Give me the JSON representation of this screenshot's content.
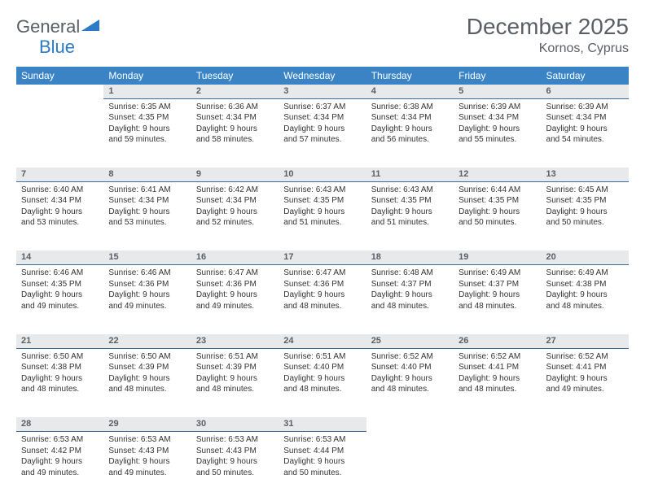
{
  "logo": {
    "part1": "General",
    "part2": "Blue"
  },
  "title": "December 2025",
  "location": "Kornos, Cyprus",
  "colors": {
    "header_bg": "#3a84c6",
    "daynum_bg": "#e8e9ea",
    "daynum_border": "#3a6a9a",
    "text": "#333333",
    "muted": "#5a5f66"
  },
  "weekdays": [
    "Sunday",
    "Monday",
    "Tuesday",
    "Wednesday",
    "Thursday",
    "Friday",
    "Saturday"
  ],
  "weeks": [
    {
      "days": [
        null,
        {
          "n": "1",
          "sunrise": "Sunrise: 6:35 AM",
          "sunset": "Sunset: 4:35 PM",
          "day1": "Daylight: 9 hours",
          "day2": "and 59 minutes."
        },
        {
          "n": "2",
          "sunrise": "Sunrise: 6:36 AM",
          "sunset": "Sunset: 4:34 PM",
          "day1": "Daylight: 9 hours",
          "day2": "and 58 minutes."
        },
        {
          "n": "3",
          "sunrise": "Sunrise: 6:37 AM",
          "sunset": "Sunset: 4:34 PM",
          "day1": "Daylight: 9 hours",
          "day2": "and 57 minutes."
        },
        {
          "n": "4",
          "sunrise": "Sunrise: 6:38 AM",
          "sunset": "Sunset: 4:34 PM",
          "day1": "Daylight: 9 hours",
          "day2": "and 56 minutes."
        },
        {
          "n": "5",
          "sunrise": "Sunrise: 6:39 AM",
          "sunset": "Sunset: 4:34 PM",
          "day1": "Daylight: 9 hours",
          "day2": "and 55 minutes."
        },
        {
          "n": "6",
          "sunrise": "Sunrise: 6:39 AM",
          "sunset": "Sunset: 4:34 PM",
          "day1": "Daylight: 9 hours",
          "day2": "and 54 minutes."
        }
      ]
    },
    {
      "days": [
        {
          "n": "7",
          "sunrise": "Sunrise: 6:40 AM",
          "sunset": "Sunset: 4:34 PM",
          "day1": "Daylight: 9 hours",
          "day2": "and 53 minutes."
        },
        {
          "n": "8",
          "sunrise": "Sunrise: 6:41 AM",
          "sunset": "Sunset: 4:34 PM",
          "day1": "Daylight: 9 hours",
          "day2": "and 53 minutes."
        },
        {
          "n": "9",
          "sunrise": "Sunrise: 6:42 AM",
          "sunset": "Sunset: 4:34 PM",
          "day1": "Daylight: 9 hours",
          "day2": "and 52 minutes."
        },
        {
          "n": "10",
          "sunrise": "Sunrise: 6:43 AM",
          "sunset": "Sunset: 4:35 PM",
          "day1": "Daylight: 9 hours",
          "day2": "and 51 minutes."
        },
        {
          "n": "11",
          "sunrise": "Sunrise: 6:43 AM",
          "sunset": "Sunset: 4:35 PM",
          "day1": "Daylight: 9 hours",
          "day2": "and 51 minutes."
        },
        {
          "n": "12",
          "sunrise": "Sunrise: 6:44 AM",
          "sunset": "Sunset: 4:35 PM",
          "day1": "Daylight: 9 hours",
          "day2": "and 50 minutes."
        },
        {
          "n": "13",
          "sunrise": "Sunrise: 6:45 AM",
          "sunset": "Sunset: 4:35 PM",
          "day1": "Daylight: 9 hours",
          "day2": "and 50 minutes."
        }
      ]
    },
    {
      "days": [
        {
          "n": "14",
          "sunrise": "Sunrise: 6:46 AM",
          "sunset": "Sunset: 4:35 PM",
          "day1": "Daylight: 9 hours",
          "day2": "and 49 minutes."
        },
        {
          "n": "15",
          "sunrise": "Sunrise: 6:46 AM",
          "sunset": "Sunset: 4:36 PM",
          "day1": "Daylight: 9 hours",
          "day2": "and 49 minutes."
        },
        {
          "n": "16",
          "sunrise": "Sunrise: 6:47 AM",
          "sunset": "Sunset: 4:36 PM",
          "day1": "Daylight: 9 hours",
          "day2": "and 49 minutes."
        },
        {
          "n": "17",
          "sunrise": "Sunrise: 6:47 AM",
          "sunset": "Sunset: 4:36 PM",
          "day1": "Daylight: 9 hours",
          "day2": "and 48 minutes."
        },
        {
          "n": "18",
          "sunrise": "Sunrise: 6:48 AM",
          "sunset": "Sunset: 4:37 PM",
          "day1": "Daylight: 9 hours",
          "day2": "and 48 minutes."
        },
        {
          "n": "19",
          "sunrise": "Sunrise: 6:49 AM",
          "sunset": "Sunset: 4:37 PM",
          "day1": "Daylight: 9 hours",
          "day2": "and 48 minutes."
        },
        {
          "n": "20",
          "sunrise": "Sunrise: 6:49 AM",
          "sunset": "Sunset: 4:38 PM",
          "day1": "Daylight: 9 hours",
          "day2": "and 48 minutes."
        }
      ]
    },
    {
      "days": [
        {
          "n": "21",
          "sunrise": "Sunrise: 6:50 AM",
          "sunset": "Sunset: 4:38 PM",
          "day1": "Daylight: 9 hours",
          "day2": "and 48 minutes."
        },
        {
          "n": "22",
          "sunrise": "Sunrise: 6:50 AM",
          "sunset": "Sunset: 4:39 PM",
          "day1": "Daylight: 9 hours",
          "day2": "and 48 minutes."
        },
        {
          "n": "23",
          "sunrise": "Sunrise: 6:51 AM",
          "sunset": "Sunset: 4:39 PM",
          "day1": "Daylight: 9 hours",
          "day2": "and 48 minutes."
        },
        {
          "n": "24",
          "sunrise": "Sunrise: 6:51 AM",
          "sunset": "Sunset: 4:40 PM",
          "day1": "Daylight: 9 hours",
          "day2": "and 48 minutes."
        },
        {
          "n": "25",
          "sunrise": "Sunrise: 6:52 AM",
          "sunset": "Sunset: 4:40 PM",
          "day1": "Daylight: 9 hours",
          "day2": "and 48 minutes."
        },
        {
          "n": "26",
          "sunrise": "Sunrise: 6:52 AM",
          "sunset": "Sunset: 4:41 PM",
          "day1": "Daylight: 9 hours",
          "day2": "and 48 minutes."
        },
        {
          "n": "27",
          "sunrise": "Sunrise: 6:52 AM",
          "sunset": "Sunset: 4:41 PM",
          "day1": "Daylight: 9 hours",
          "day2": "and 49 minutes."
        }
      ]
    },
    {
      "days": [
        {
          "n": "28",
          "sunrise": "Sunrise: 6:53 AM",
          "sunset": "Sunset: 4:42 PM",
          "day1": "Daylight: 9 hours",
          "day2": "and 49 minutes."
        },
        {
          "n": "29",
          "sunrise": "Sunrise: 6:53 AM",
          "sunset": "Sunset: 4:43 PM",
          "day1": "Daylight: 9 hours",
          "day2": "and 49 minutes."
        },
        {
          "n": "30",
          "sunrise": "Sunrise: 6:53 AM",
          "sunset": "Sunset: 4:43 PM",
          "day1": "Daylight: 9 hours",
          "day2": "and 50 minutes."
        },
        {
          "n": "31",
          "sunrise": "Sunrise: 6:53 AM",
          "sunset": "Sunset: 4:44 PM",
          "day1": "Daylight: 9 hours",
          "day2": "and 50 minutes."
        },
        null,
        null,
        null
      ]
    }
  ]
}
